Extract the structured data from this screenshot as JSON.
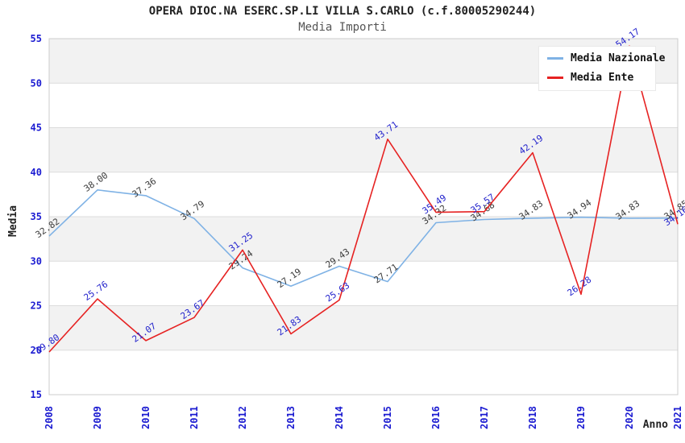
{
  "chart_data": {
    "type": "line",
    "title": "OPERA DIOC.NA ESERC.SP.LI VILLA S.CARLO (c.f.80005290244)",
    "subtitle": "Media Importi",
    "xlabel": "Anno",
    "ylabel": "Media",
    "x": [
      "2008",
      "2009",
      "2010",
      "2011",
      "2012",
      "2013",
      "2014",
      "2015",
      "2016",
      "2017",
      "2018",
      "2019",
      "2020",
      "2021"
    ],
    "ylim": [
      15,
      55
    ],
    "ytick_step": 5,
    "grid": true,
    "legend_position": "top-right",
    "series": [
      {
        "name": "Media Nazionale",
        "color": "#7fb2e5",
        "label_color": "#3a3a3a",
        "values": [
          32.82,
          38.0,
          37.36,
          34.79,
          29.24,
          27.19,
          29.43,
          27.71,
          34.32,
          34.68,
          34.83,
          34.94,
          34.83,
          34.85
        ]
      },
      {
        "name": "Media Ente",
        "color": "#e62222",
        "label_color": "#2323cc",
        "values": [
          19.8,
          25.76,
          21.07,
          23.67,
          31.25,
          21.83,
          25.63,
          43.71,
          35.49,
          35.57,
          42.19,
          26.28,
          54.17,
          34.16
        ]
      }
    ]
  },
  "colors": {
    "tick_label": "#1b1bd1",
    "band": "#f2f2f2",
    "grid": "#dcdcdc",
    "plot_border": "#cccccc",
    "axis_title": "#222222"
  }
}
